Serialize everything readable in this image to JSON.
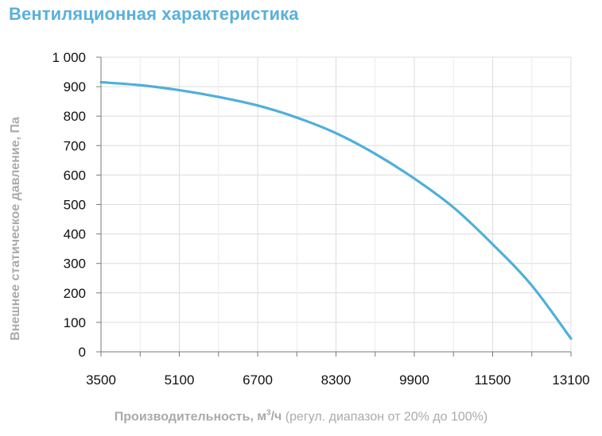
{
  "chart_data": {
    "type": "line",
    "title": "Вентиляционная характеристика",
    "ylabel": "Внешнее статическое давление, Па",
    "xlabel": {
      "main": "Производительность",
      "unit_prefix": ", м",
      "unit_exp": "3",
      "unit_suffix": "/ч",
      "note": " (регул. диапазон от 20% до 100%)"
    },
    "xlim": [
      3500,
      13100
    ],
    "ylim": [
      0,
      1000
    ],
    "x_ticks": [
      3500,
      5100,
      6700,
      8300,
      9900,
      11500,
      13100
    ],
    "y_ticks": [
      0,
      100,
      200,
      300,
      400,
      500,
      600,
      700,
      800,
      900,
      1000
    ],
    "y_tick_labels": [
      "0",
      "100",
      "200",
      "300",
      "400",
      "500",
      "600",
      "700",
      "800",
      "900",
      "1 000"
    ],
    "grid": true,
    "line_color": "#4fb0d9",
    "series": [
      {
        "x": [
          3500,
          4300,
          5100,
          5900,
          6700,
          7500,
          8300,
          9100,
          9900,
          10700,
          11500,
          12300,
          13100
        ],
        "y": [
          915,
          905,
          888,
          865,
          836,
          795,
          742,
          672,
          588,
          490,
          365,
          225,
          45
        ]
      }
    ]
  }
}
